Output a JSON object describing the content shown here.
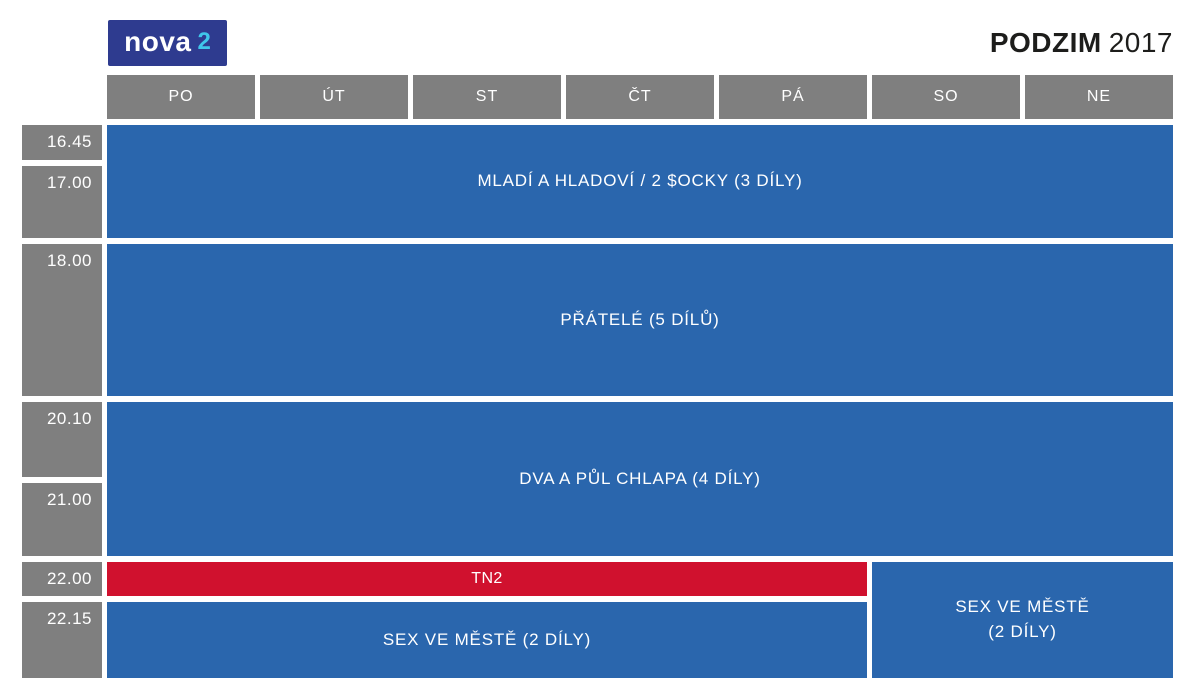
{
  "header": {
    "logo": {
      "text": "nova",
      "number": "2"
    },
    "season": {
      "name": "PODZIM",
      "year": "2017"
    }
  },
  "colors": {
    "program_blue": "#2a66ad",
    "program_red": "#d0112e",
    "grid_gray": "#7f7f7f",
    "logo_navy": "#2e3b8f",
    "logo_cyan": "#3fc6ea",
    "title_dark": "#1d1d1b",
    "cell_text": "#ffffff"
  },
  "chart_data": {
    "type": "table",
    "title": "nova 2 PODZIM 2017",
    "columns": [
      "PO",
      "ÚT",
      "ST",
      "ČT",
      "PÁ",
      "SO",
      "NE"
    ],
    "rows": [
      "16.45",
      "17.00",
      "18.00",
      "20.10",
      "21.00",
      "22.00",
      "22.15"
    ],
    "cells": [
      {
        "program": "MLADÍ A HLADOVÍ / 2 $OCKY (3 DÍLY)",
        "days": "PO-NE",
        "time": "16.45-18.00",
        "color": "blue"
      },
      {
        "program": "PŘÁTELÉ (5 DÍLŮ)",
        "days": "PO-NE",
        "time": "18.00-20.10",
        "color": "blue"
      },
      {
        "program": "DVA A PŮL CHLAPA (4 DÍLY)",
        "days": "PO-NE",
        "time": "20.10-22.00",
        "color": "blue"
      },
      {
        "program": "TN2",
        "days": "PO-PÁ",
        "time": "22.00-22.15",
        "color": "red"
      },
      {
        "program": "SEX VE MĚSTĚ (2 DÍLY)",
        "days": "PO-PÁ",
        "time": "22.15-",
        "color": "blue"
      },
      {
        "program": "SEX VE MĚSTĚ (2 DÍLY)",
        "days": "SO-NE",
        "time": "22.00-",
        "color": "blue"
      }
    ]
  },
  "schedule": {
    "days": [
      "PO",
      "ÚT",
      "ST",
      "ČT",
      "PÁ",
      "SO",
      "NE"
    ],
    "times": [
      "16.45",
      "17.00",
      "18.00",
      "20.10",
      "21.00",
      "22.00",
      "22.15"
    ],
    "programs": [
      {
        "title": "MLADÍ A HLADOVÍ / 2 $OCKY (3 DÍLY)",
        "day_start": "PO",
        "day_end": "NE",
        "time_start": "16.45",
        "time_end": "17.00",
        "color": "blue"
      },
      {
        "title": "PŘÁTELÉ (5 DÍLŮ)",
        "day_start": "PO",
        "day_end": "NE",
        "time_start": "18.00",
        "time_end": "18.00",
        "color": "blue"
      },
      {
        "title": "DVA A PŮL CHLAPA (4 DÍLY)",
        "day_start": "PO",
        "day_end": "NE",
        "time_start": "20.10",
        "time_end": "21.00",
        "color": "blue"
      },
      {
        "title": "TN2",
        "day_start": "PO",
        "day_end": "PÁ",
        "time_start": "22.00",
        "time_end": "22.00",
        "color": "red"
      },
      {
        "title": "SEX VE MĚSTĚ (2 DÍLY)",
        "day_start": "PO",
        "day_end": "PÁ",
        "time_start": "22.15",
        "time_end": "22.15",
        "color": "blue"
      },
      {
        "title": "SEX VE MĚSTĚ\n(2 DÍLY)",
        "day_start": "SO",
        "day_end": "NE",
        "time_start": "22.00",
        "time_end": "22.15",
        "color": "blue"
      }
    ]
  }
}
